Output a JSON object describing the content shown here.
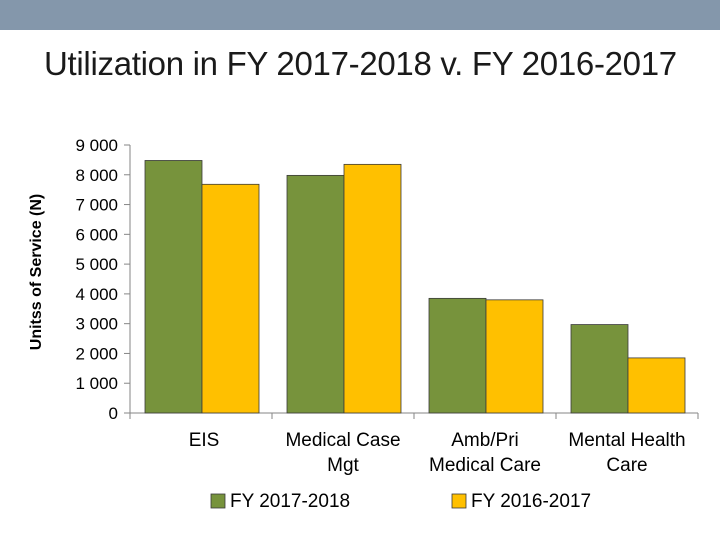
{
  "slide": {
    "title": "Utilization in FY 2017-2018 v. FY 2016-2017",
    "band_color": "#8497AB"
  },
  "chart_data": {
    "type": "bar",
    "categories": [
      [
        "EIS"
      ],
      [
        "Medical Case",
        "Mgt"
      ],
      [
        "Amb/Pri",
        "Medical Care"
      ],
      [
        "Mental Health",
        "Care"
      ]
    ],
    "series": [
      {
        "name": "FY 2017-2018",
        "color": "#77933C",
        "values": [
          8480,
          7980,
          3850,
          2970
        ]
      },
      {
        "name": "FY 2016-2017",
        "color": "#FFC000",
        "values": [
          7680,
          8350,
          3800,
          1850
        ]
      }
    ],
    "ylabel": "Unitss of Service (N)",
    "ylim": [
      0,
      9000
    ],
    "yticks": [
      {
        "value": 0,
        "label": "0"
      },
      {
        "value": 1000,
        "label": "1 000"
      },
      {
        "value": 2000,
        "label": "2 000"
      },
      {
        "value": 3000,
        "label": "3 000"
      },
      {
        "value": 4000,
        "label": "4 000"
      },
      {
        "value": 5000,
        "label": "5 000"
      },
      {
        "value": 6000,
        "label": "6 000"
      },
      {
        "value": 7000,
        "label": "7 000"
      },
      {
        "value": 8000,
        "label": "8 000"
      },
      {
        "value": 9000,
        "label": "9 000"
      }
    ],
    "grid": false,
    "legend_position": "bottom"
  }
}
